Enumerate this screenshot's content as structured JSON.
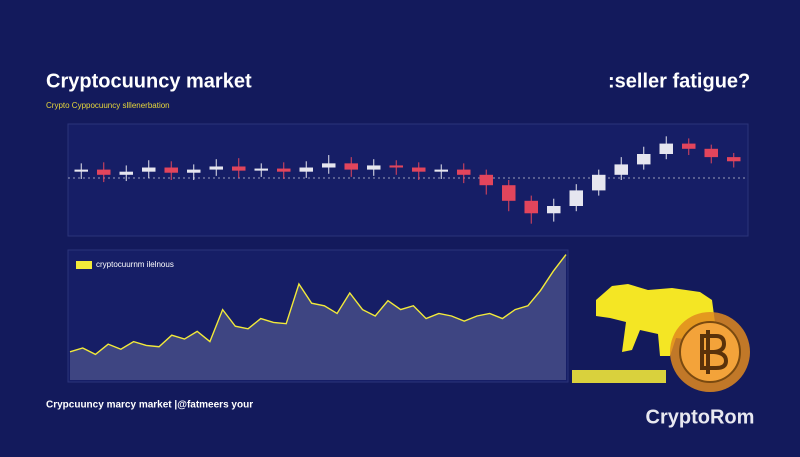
{
  "header": {
    "title": "Cryptocuuncy market",
    "title_right": ":seller fatigue?",
    "subtitle": "Crypto Cyppocuuncy slllenerbation"
  },
  "chart_data": [
    {
      "type": "candlestick",
      "open": [
        58,
        60,
        55,
        58,
        62,
        57,
        60,
        63,
        59,
        61,
        58,
        62,
        66,
        60,
        64,
        62,
        58,
        60,
        55,
        45,
        30,
        18,
        25,
        40,
        55,
        65,
        75,
        85,
        80,
        72
      ],
      "close": [
        60,
        55,
        58,
        62,
        57,
        60,
        63,
        59,
        61,
        58,
        62,
        66,
        60,
        64,
        62,
        58,
        60,
        55,
        45,
        30,
        18,
        25,
        40,
        55,
        65,
        75,
        85,
        80,
        72,
        68
      ],
      "high": [
        66,
        67,
        64,
        69,
        68,
        65,
        70,
        71,
        66,
        67,
        68,
        74,
        72,
        70,
        69,
        67,
        65,
        66,
        60,
        50,
        35,
        32,
        46,
        60,
        72,
        82,
        92,
        90,
        84,
        76
      ],
      "low": [
        51,
        48,
        49,
        52,
        50,
        50,
        54,
        52,
        53,
        51,
        52,
        56,
        53,
        54,
        55,
        50,
        51,
        47,
        36,
        20,
        8,
        10,
        20,
        35,
        50,
        60,
        70,
        74,
        66,
        62
      ],
      "up_color": "#e6e6ef",
      "down_color": "#e2455c",
      "ylim": [
        0,
        100
      ]
    },
    {
      "type": "line",
      "series": [
        {
          "name": "cryptocuurnm ilelnous",
          "color": "#f2ea3a",
          "values": [
            22,
            25,
            20,
            28,
            24,
            30,
            27,
            26,
            35,
            32,
            38,
            30,
            55,
            42,
            40,
            48,
            45,
            44,
            75,
            60,
            58,
            52,
            68,
            55,
            50,
            62,
            55,
            58,
            48,
            52,
            50,
            46,
            50,
            52,
            48,
            55,
            58,
            70,
            85,
            98
          ]
        }
      ],
      "ylim": [
        0,
        100
      ]
    }
  ],
  "footer": {
    "text": "Crypcuuncy marcy market |@fatmeers your"
  },
  "logo": {
    "text": "CryptoRom"
  }
}
